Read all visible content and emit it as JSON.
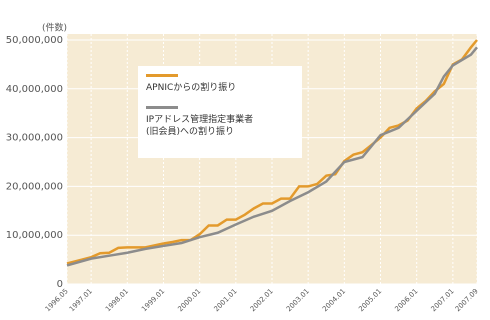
{
  "chart_data": {
    "type": "line",
    "y_axis_label": "(件数)",
    "xlim": [
      1996.333,
      2007.667
    ],
    "xticks": [
      {
        "value": 1996.333,
        "label": "1996.05"
      },
      {
        "value": 1997,
        "label": "1997.01"
      },
      {
        "value": 1998,
        "label": "1998.01"
      },
      {
        "value": 1999,
        "label": "1999.01"
      },
      {
        "value": 2000,
        "label": "2000.01"
      },
      {
        "value": 2001,
        "label": "2001.01"
      },
      {
        "value": 2002,
        "label": "2002.01"
      },
      {
        "value": 2003,
        "label": "2003.01"
      },
      {
        "value": 2004,
        "label": "2004.01"
      },
      {
        "value": 2005,
        "label": "2005.01"
      },
      {
        "value": 2006,
        "label": "2006.01"
      },
      {
        "value": 2007,
        "label": "2007.01"
      },
      {
        "value": 2007.667,
        "label": "2007.09"
      }
    ],
    "ylim": [
      0,
      50000000
    ],
    "yticks": [
      {
        "value": 0,
        "label": "0"
      },
      {
        "value": 10000000,
        "label": "10,000,000"
      },
      {
        "value": 20000000,
        "label": "20,000,000"
      },
      {
        "value": 30000000,
        "label": "30,000,000"
      },
      {
        "value": 40000000,
        "label": "40,000,000"
      },
      {
        "value": 50000000,
        "label": "50,000,000"
      }
    ],
    "grid": true,
    "series": [
      {
        "name": "APNICからの割り振り",
        "color": "#e39a2c",
        "x": [
          1996.333,
          1996.75,
          1997,
          1997.25,
          1997.5,
          1997.75,
          1998,
          1998.5,
          1999,
          1999.25,
          1999.5,
          1999.75,
          2000,
          2000.25,
          2000.5,
          2000.75,
          2001,
          2001.25,
          2001.5,
          2001.75,
          2002,
          2002.25,
          2002.5,
          2002.75,
          2003,
          2003.25,
          2003.5,
          2003.75,
          2004,
          2004.25,
          2004.5,
          2004.75,
          2005,
          2005.25,
          2005.5,
          2005.75,
          2006,
          2006.25,
          2006.5,
          2006.75,
          2007,
          2007.25,
          2007.5,
          2007.667
        ],
        "values": [
          4200000,
          5000000,
          5500000,
          6300000,
          6400000,
          7400000,
          7500000,
          7500000,
          8300000,
          8600000,
          9000000,
          9000000,
          10200000,
          12000000,
          12000000,
          13200000,
          13200000,
          14200000,
          15500000,
          16500000,
          16500000,
          17500000,
          17500000,
          20000000,
          20000000,
          20500000,
          22200000,
          22500000,
          25200000,
          26500000,
          27000000,
          28500000,
          30000000,
          32000000,
          32500000,
          33500000,
          36000000,
          37500000,
          39500000,
          41000000,
          45000000,
          46000000,
          48500000,
          50000000
        ]
      },
      {
        "name": "IPアドレス管理指定事業者\n(旧会員)への割り振り",
        "color": "#8c8c8c",
        "x": [
          1996.333,
          1997,
          1997.5,
          1998,
          1998.5,
          1999,
          1999.5,
          2000,
          2000.5,
          2001,
          2001.5,
          2002,
          2002.5,
          2003,
          2003.5,
          2004,
          2004.5,
          2005,
          2005.5,
          2006,
          2006.5,
          2006.75,
          2007,
          2007.5,
          2007.667
        ],
        "values": [
          3800000,
          5200000,
          5800000,
          6400000,
          7200000,
          7800000,
          8400000,
          9600000,
          10500000,
          12200000,
          13800000,
          15000000,
          17000000,
          18800000,
          21000000,
          25000000,
          26000000,
          30500000,
          32000000,
          35500000,
          39000000,
          42500000,
          44800000,
          47000000,
          48500000
        ]
      }
    ]
  }
}
